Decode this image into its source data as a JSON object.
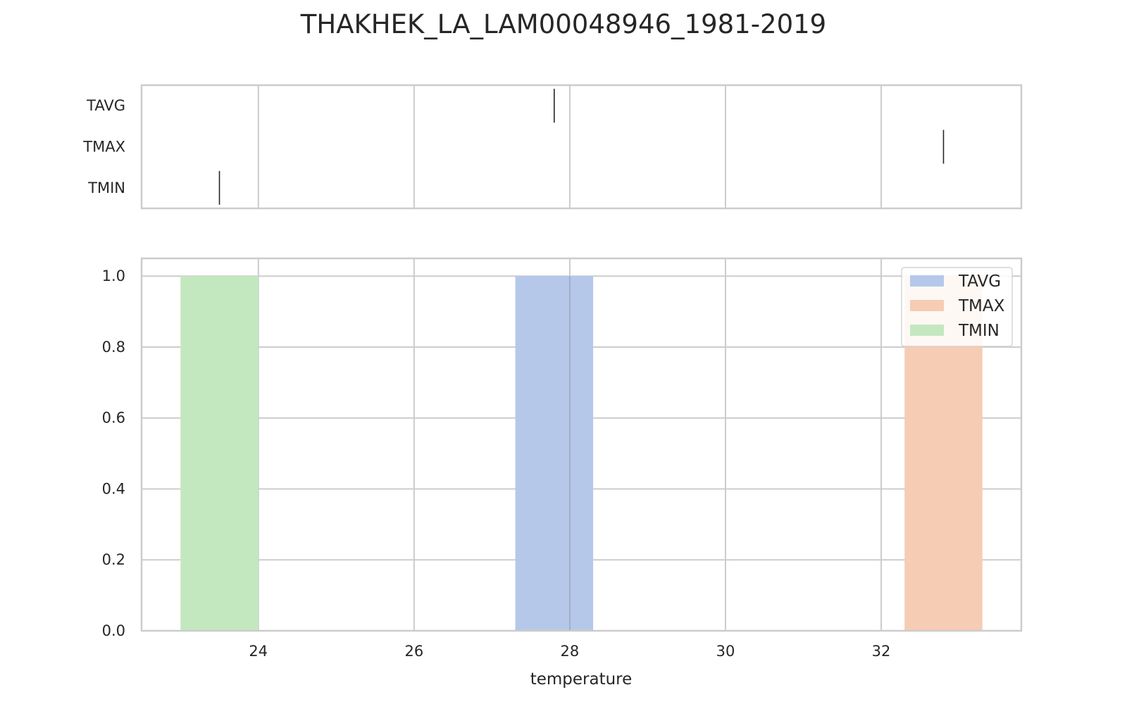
{
  "chart_data": {
    "type": "bar",
    "title": "THAKHEK_LA_LAM00048946_1981-2019",
    "xlabel": "temperature",
    "ylabel": "",
    "xlim": [
      22.5,
      33.8
    ],
    "ylim": [
      0,
      1.05
    ],
    "xticks": [
      "24",
      "26",
      "28",
      "30",
      "32"
    ],
    "yticks": [
      "0.0",
      "0.2",
      "0.4",
      "0.6",
      "0.8",
      "1.0"
    ],
    "grid": true,
    "legend_position": "top-right",
    "series": [
      {
        "name": "TAVG",
        "mean": 27.8,
        "bin_start": 27.3,
        "bin_end": 28.3,
        "value": 1.0,
        "color": "#b5c8ea"
      },
      {
        "name": "TMAX",
        "mean": 32.8,
        "bin_start": 32.3,
        "bin_end": 33.3,
        "value": 1.0,
        "color": "#f6ccb4"
      },
      {
        "name": "TMIN",
        "mean": 23.5,
        "bin_start": 23.0,
        "bin_end": 24.0,
        "value": 1.0,
        "color": "#c3e8c0"
      }
    ]
  }
}
